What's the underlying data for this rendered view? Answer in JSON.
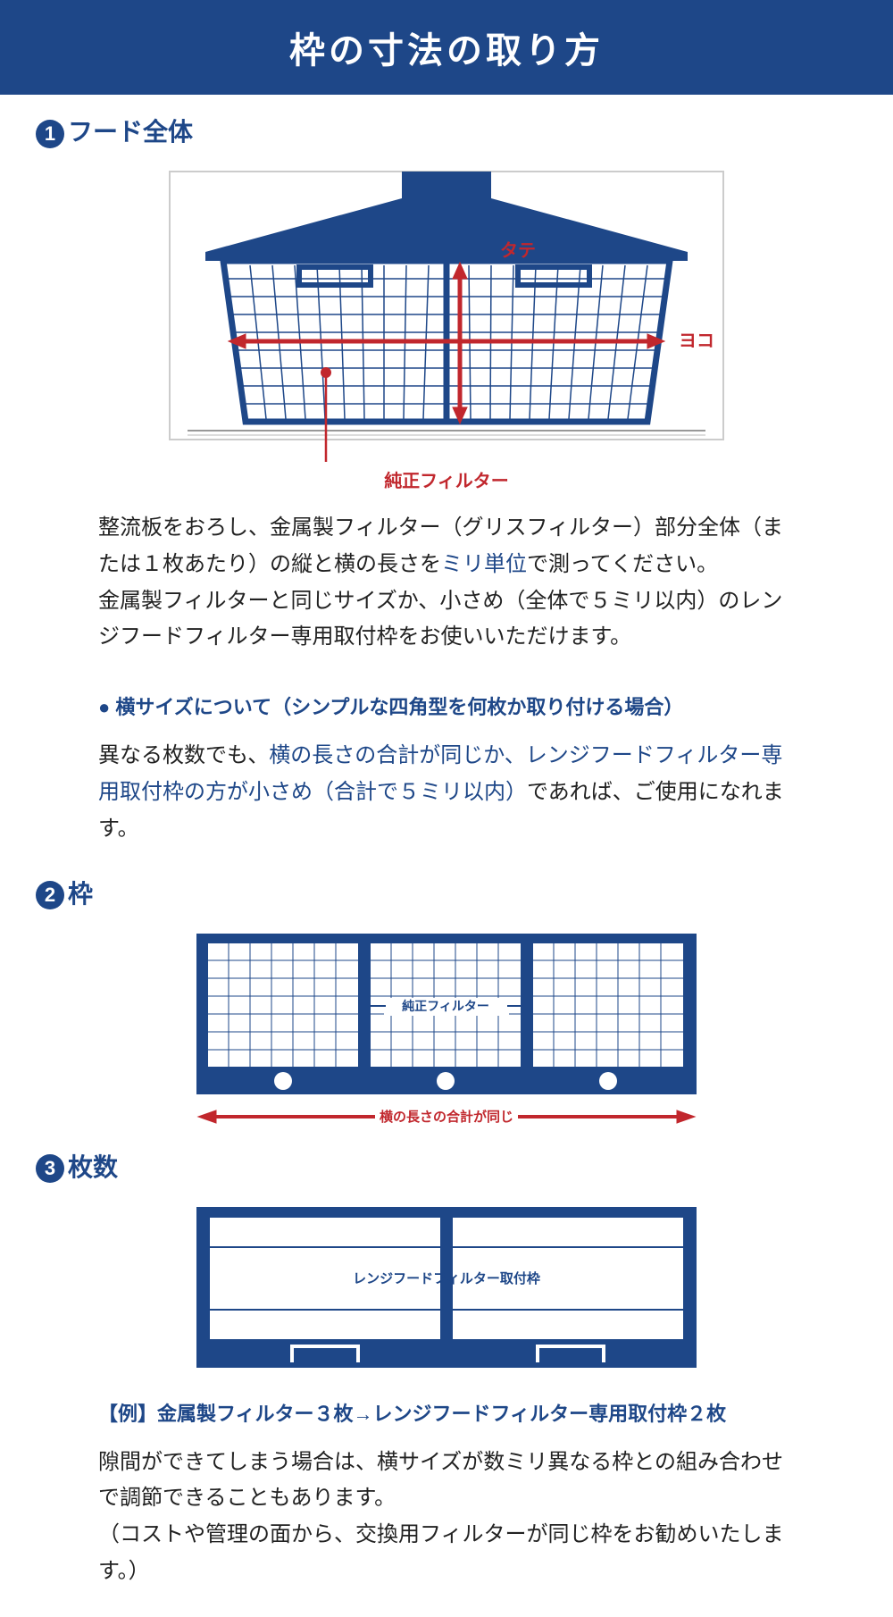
{
  "header": {
    "title": "枠の寸法の取り方"
  },
  "section1": {
    "number": "1",
    "title": "フード全体",
    "diagram": {
      "label_tate": "タテ",
      "label_yoko": "ヨコ",
      "label_filter": "純正フィルター",
      "colors": {
        "hood_fill": "#1e4788",
        "frame_stroke": "#1e4788",
        "grid_stroke": "#1e4788",
        "arrow_red": "#c1272d",
        "drawing_border": "#cccccc",
        "background": "#ffffff"
      },
      "grid": {
        "rows": 8,
        "cols": 20,
        "cell": 24
      }
    },
    "paragraph_parts": [
      {
        "t": "整流板をおろし、金属製フィルター（グリスフィルター）部分全体（または１枚あたり）の縦と横の長さを",
        "hl": false
      },
      {
        "t": "ミリ単位",
        "hl": true
      },
      {
        "t": "で測ってください。\n金属製フィルターと同じサイズか、小さめ（全体で５ミリ以内）のレンジフードフィルター専用取付枠をお使いいただけます。",
        "hl": false
      }
    ],
    "sub_heading": "● 横サイズについて（シンプルな四角型を何枚か取り付ける場合）",
    "sub_paragraph_parts": [
      {
        "t": "異なる枚数でも、",
        "hl": false
      },
      {
        "t": "横の長さの合計が同じか、レンジフードフィルター専用取付枠の方が小さめ（合計で５ミリ以内）",
        "hl": true
      },
      {
        "t": "であれば、ご使用になれます。",
        "hl": false
      }
    ]
  },
  "section2": {
    "number": "2",
    "title": "枠",
    "diagram": {
      "label_filter": "純正フィルター",
      "label_width": "横の長さの合計が同じ",
      "colors": {
        "frame_fill": "#1e4788",
        "grid_stroke": "#1e4788",
        "arrow_red": "#c1272d",
        "white": "#ffffff"
      },
      "panels": 3,
      "grid": {
        "rows": 7,
        "cols": 7
      }
    }
  },
  "section3": {
    "number": "3",
    "title": "枚数",
    "diagram": {
      "label_frame": "レンジフードフィルター取付枠",
      "colors": {
        "frame_fill": "#1e4788",
        "line": "#1e4788",
        "white": "#ffffff"
      },
      "panels": 2
    },
    "example_heading": "【例】金属製フィルター３枚→レンジフードフィルター専用取付枠２枚",
    "paragraph": "隙間ができてしまう場合は、横サイズが数ミリ異なる枠との組み合わせで調節できることもあります。\n（コストや管理の面から、交換用フィルターが同じ枠をお勧めいたします。）"
  }
}
